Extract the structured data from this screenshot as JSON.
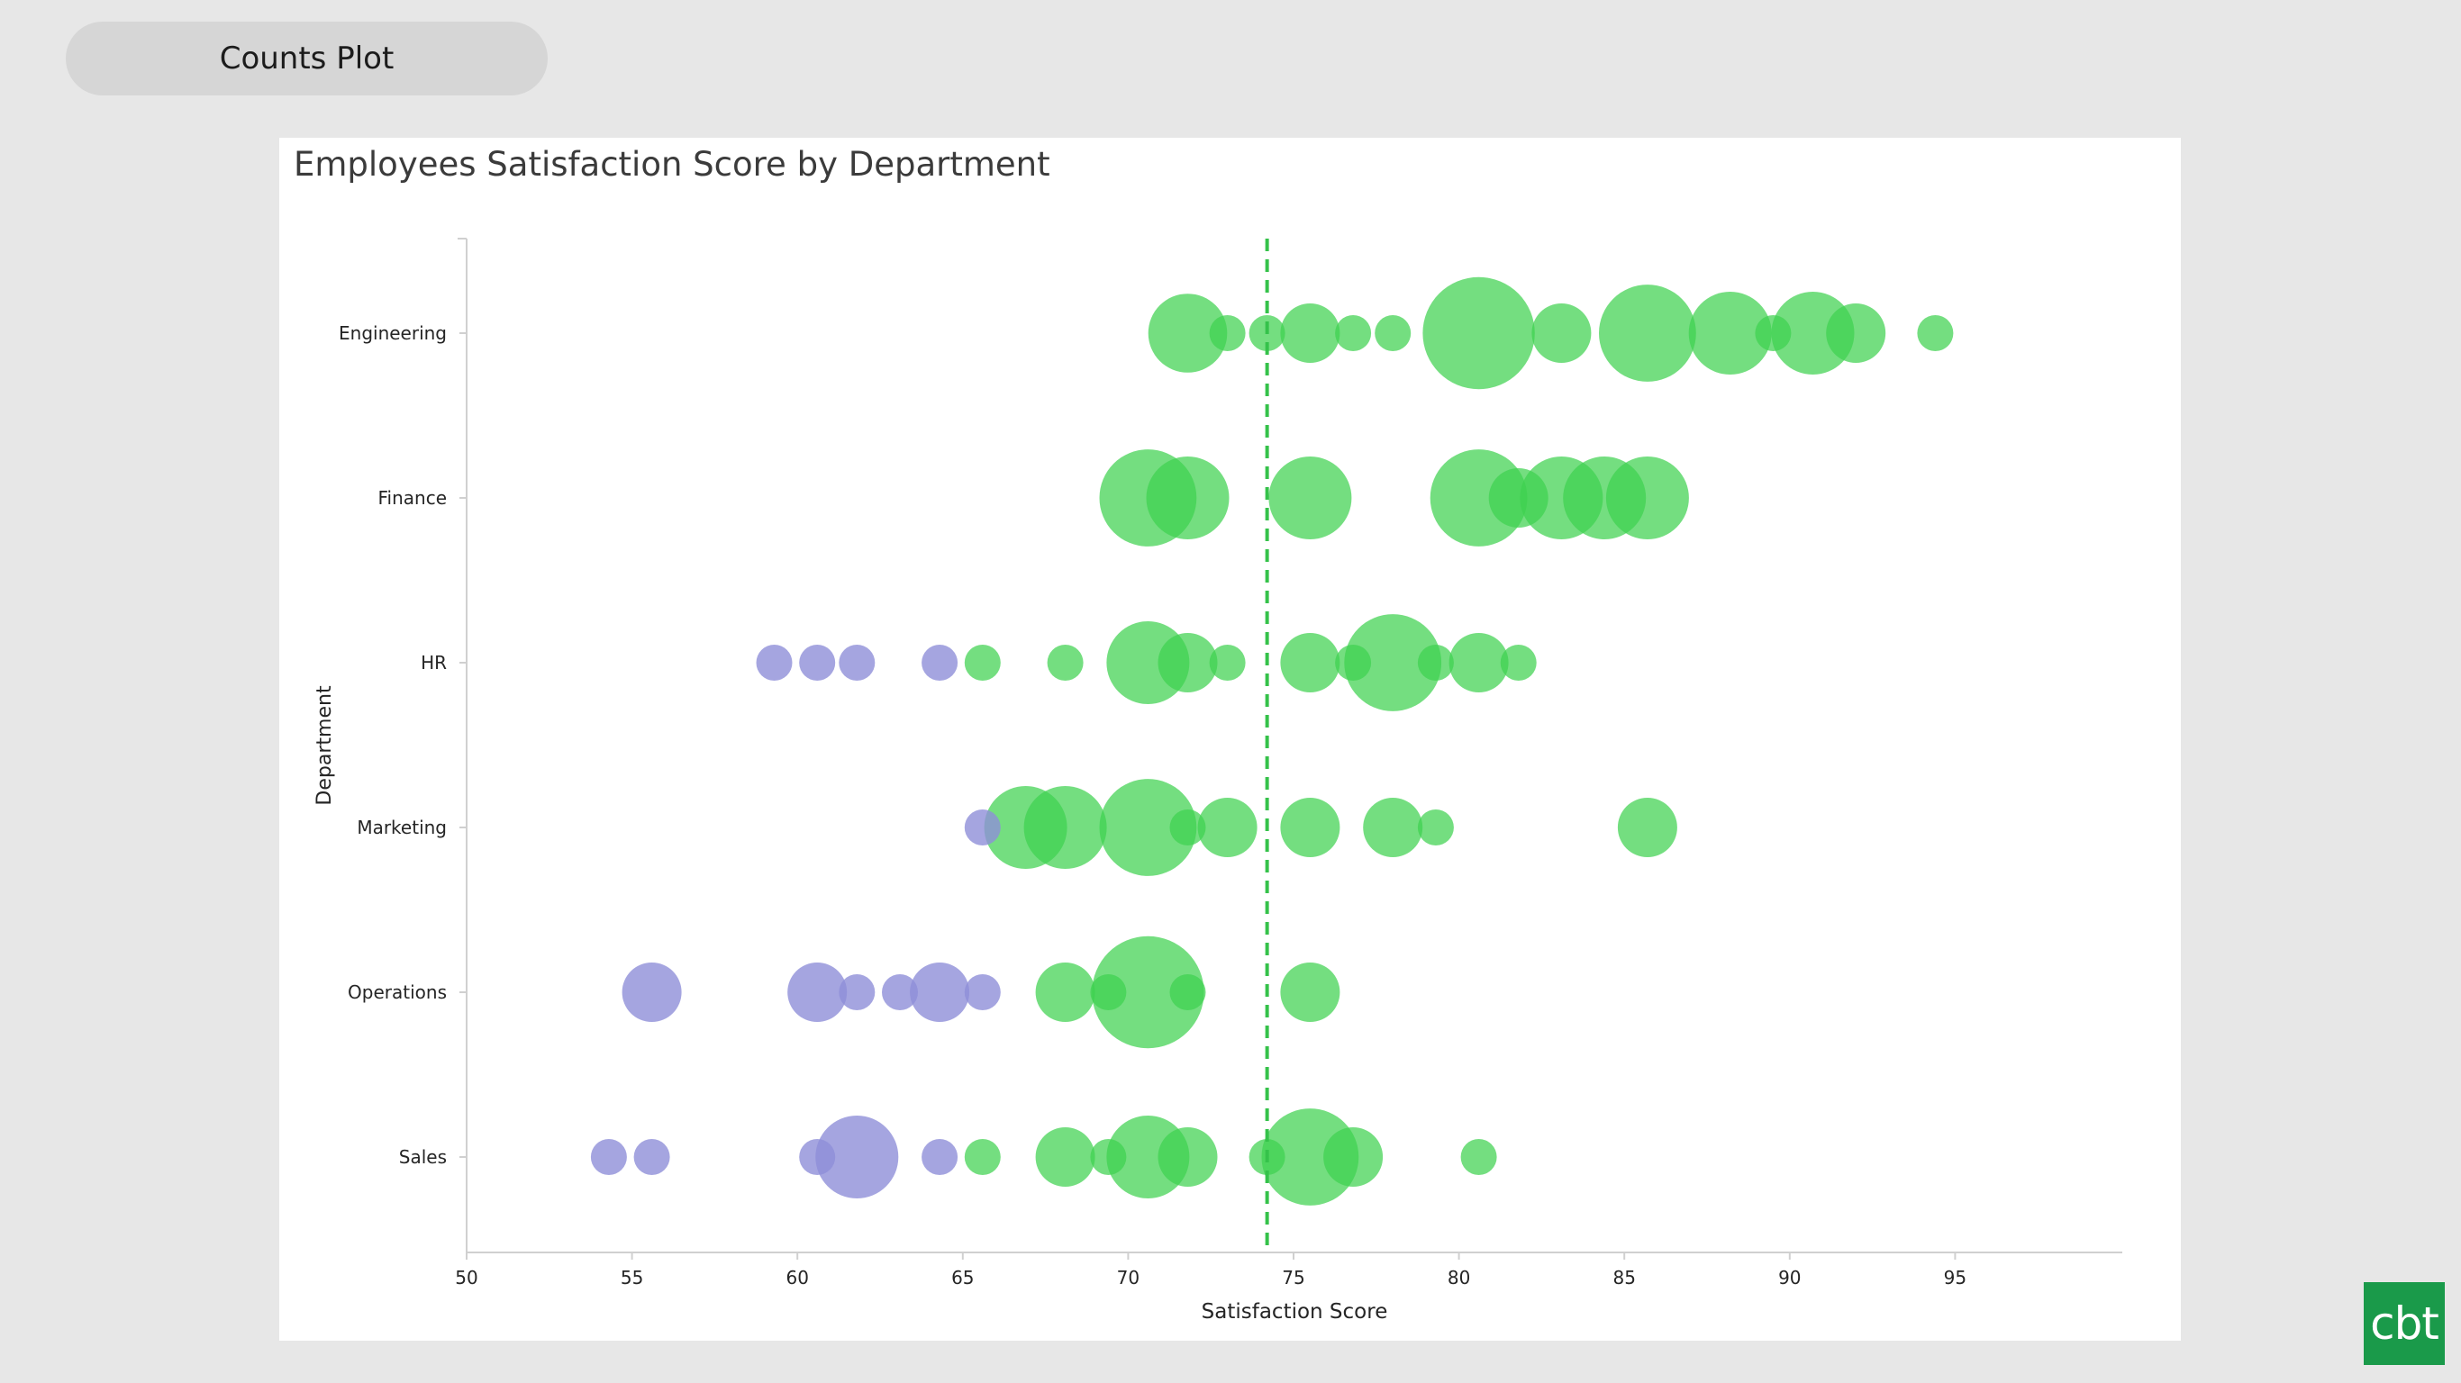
{
  "tab": {
    "label": "Counts Plot"
  },
  "logo": {
    "text": "cbt"
  },
  "colors": {
    "green": "#3fd14f",
    "purple": "#8e8ed8",
    "reference_line": "#35c24a"
  },
  "chart_data": {
    "type": "scatter",
    "title": "Employees Satisfaction Score by Department",
    "xlabel": "Satisfaction Score",
    "ylabel": "Department",
    "xlim": [
      50,
      100
    ],
    "xticks": [
      50,
      55,
      60,
      65,
      70,
      75,
      80,
      85,
      90,
      95
    ],
    "categories": [
      "Engineering",
      "Finance",
      "HR",
      "Marketing",
      "Operations",
      "Sales"
    ],
    "size_encoding": "count",
    "reference_line": {
      "x": 74.2,
      "style": "dashed"
    },
    "legend": "none",
    "grid": false,
    "series": [
      {
        "color": "green",
        "points": [
          {
            "dept": "Engineering",
            "x": 71.8,
            "count": 8
          },
          {
            "dept": "Engineering",
            "x": 73.0,
            "count": 1
          },
          {
            "dept": "Engineering",
            "x": 74.2,
            "count": 1
          },
          {
            "dept": "Engineering",
            "x": 75.5,
            "count": 4
          },
          {
            "dept": "Engineering",
            "x": 76.8,
            "count": 1
          },
          {
            "dept": "Engineering",
            "x": 78.0,
            "count": 1
          },
          {
            "dept": "Engineering",
            "x": 80.6,
            "count": 18
          },
          {
            "dept": "Engineering",
            "x": 83.1,
            "count": 4
          },
          {
            "dept": "Engineering",
            "x": 85.7,
            "count": 13
          },
          {
            "dept": "Engineering",
            "x": 88.2,
            "count": 9
          },
          {
            "dept": "Engineering",
            "x": 89.5,
            "count": 1
          },
          {
            "dept": "Engineering",
            "x": 90.7,
            "count": 9
          },
          {
            "dept": "Engineering",
            "x": 92.0,
            "count": 4
          },
          {
            "dept": "Engineering",
            "x": 94.4,
            "count": 1
          },
          {
            "dept": "Finance",
            "x": 70.6,
            "count": 13
          },
          {
            "dept": "Finance",
            "x": 71.8,
            "count": 9
          },
          {
            "dept": "Finance",
            "x": 75.5,
            "count": 9
          },
          {
            "dept": "Finance",
            "x": 80.6,
            "count": 13
          },
          {
            "dept": "Finance",
            "x": 81.8,
            "count": 4
          },
          {
            "dept": "Finance",
            "x": 83.1,
            "count": 9
          },
          {
            "dept": "Finance",
            "x": 84.4,
            "count": 9
          },
          {
            "dept": "Finance",
            "x": 85.7,
            "count": 9
          },
          {
            "dept": "HR",
            "x": 65.6,
            "count": 1
          },
          {
            "dept": "HR",
            "x": 68.1,
            "count": 1
          },
          {
            "dept": "HR",
            "x": 70.6,
            "count": 9
          },
          {
            "dept": "HR",
            "x": 71.8,
            "count": 4
          },
          {
            "dept": "HR",
            "x": 73.0,
            "count": 1
          },
          {
            "dept": "HR",
            "x": 75.5,
            "count": 4
          },
          {
            "dept": "HR",
            "x": 76.8,
            "count": 1
          },
          {
            "dept": "HR",
            "x": 78.0,
            "count": 13
          },
          {
            "dept": "HR",
            "x": 79.3,
            "count": 1
          },
          {
            "dept": "HR",
            "x": 80.6,
            "count": 4
          },
          {
            "dept": "HR",
            "x": 81.8,
            "count": 1
          },
          {
            "dept": "Marketing",
            "x": 66.9,
            "count": 9
          },
          {
            "dept": "Marketing",
            "x": 68.1,
            "count": 9
          },
          {
            "dept": "Marketing",
            "x": 70.6,
            "count": 13
          },
          {
            "dept": "Marketing",
            "x": 71.8,
            "count": 1
          },
          {
            "dept": "Marketing",
            "x": 73.0,
            "count": 4
          },
          {
            "dept": "Marketing",
            "x": 75.5,
            "count": 4
          },
          {
            "dept": "Marketing",
            "x": 78.0,
            "count": 4
          },
          {
            "dept": "Marketing",
            "x": 79.3,
            "count": 1
          },
          {
            "dept": "Marketing",
            "x": 85.7,
            "count": 4
          },
          {
            "dept": "Operations",
            "x": 68.1,
            "count": 4
          },
          {
            "dept": "Operations",
            "x": 69.4,
            "count": 1
          },
          {
            "dept": "Operations",
            "x": 70.6,
            "count": 18
          },
          {
            "dept": "Operations",
            "x": 71.8,
            "count": 1
          },
          {
            "dept": "Operations",
            "x": 75.5,
            "count": 4
          },
          {
            "dept": "Sales",
            "x": 65.6,
            "count": 1
          },
          {
            "dept": "Sales",
            "x": 68.1,
            "count": 4
          },
          {
            "dept": "Sales",
            "x": 69.4,
            "count": 1
          },
          {
            "dept": "Sales",
            "x": 70.6,
            "count": 9
          },
          {
            "dept": "Sales",
            "x": 71.8,
            "count": 4
          },
          {
            "dept": "Sales",
            "x": 74.2,
            "count": 1
          },
          {
            "dept": "Sales",
            "x": 75.5,
            "count": 13
          },
          {
            "dept": "Sales",
            "x": 76.8,
            "count": 4
          },
          {
            "dept": "Sales",
            "x": 80.6,
            "count": 1
          }
        ]
      },
      {
        "color": "purple",
        "points": [
          {
            "dept": "HR",
            "x": 59.3,
            "count": 1
          },
          {
            "dept": "HR",
            "x": 60.6,
            "count": 1
          },
          {
            "dept": "HR",
            "x": 61.8,
            "count": 1
          },
          {
            "dept": "HR",
            "x": 64.3,
            "count": 1
          },
          {
            "dept": "Marketing",
            "x": 65.6,
            "count": 1
          },
          {
            "dept": "Operations",
            "x": 55.6,
            "count": 4
          },
          {
            "dept": "Operations",
            "x": 60.6,
            "count": 4
          },
          {
            "dept": "Operations",
            "x": 61.8,
            "count": 1
          },
          {
            "dept": "Operations",
            "x": 63.1,
            "count": 1
          },
          {
            "dept": "Operations",
            "x": 64.3,
            "count": 4
          },
          {
            "dept": "Operations",
            "x": 65.6,
            "count": 1
          },
          {
            "dept": "Sales",
            "x": 54.3,
            "count": 1
          },
          {
            "dept": "Sales",
            "x": 55.6,
            "count": 1
          },
          {
            "dept": "Sales",
            "x": 60.6,
            "count": 1
          },
          {
            "dept": "Sales",
            "x": 61.8,
            "count": 9
          },
          {
            "dept": "Sales",
            "x": 64.3,
            "count": 1
          }
        ]
      }
    ]
  }
}
